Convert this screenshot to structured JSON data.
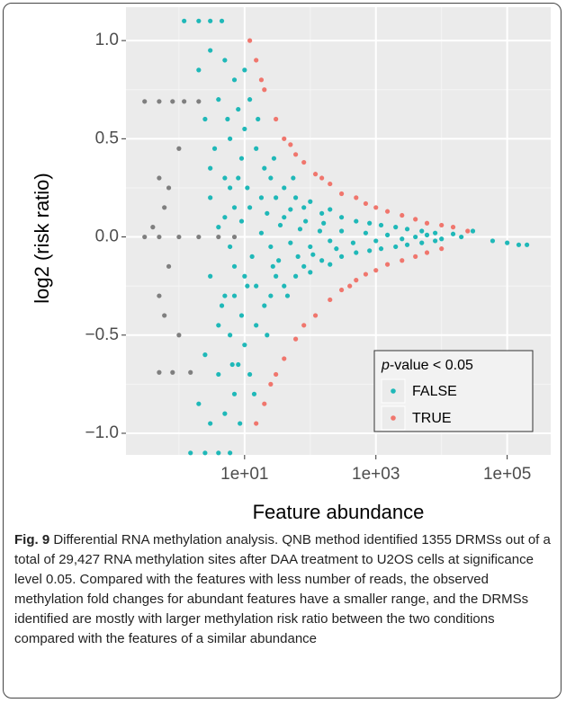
{
  "chart_data": {
    "type": "scatter",
    "x_label": "Feature abundance",
    "y_label": "log2 (risk ratio)",
    "log_x": true,
    "xlim": [
      0.156,
      460000
    ],
    "xticks": [
      {
        "value": 10,
        "label": "1e+01"
      },
      {
        "value": 1000,
        "label": "1e+03"
      },
      {
        "value": 100000,
        "label": "1e+05"
      }
    ],
    "xminor_ticks": [
      1,
      100,
      10000
    ],
    "ylim": [
      -1.11,
      1.17
    ],
    "yticks": [
      {
        "value": -1,
        "label": "−1.0"
      },
      {
        "value": -0.5,
        "label": "−0.5"
      },
      {
        "value": 0,
        "label": "0.0"
      },
      0.5,
      {
        "value": 1,
        "label": "1.0"
      }
    ],
    "yminor_ticks": [
      -0.75,
      -0.25,
      0.25,
      0.75
    ],
    "grid": true,
    "legend_title": [
      "p",
      "-value < 0.05"
    ],
    "legend_position": "bottom-right",
    "series": [
      {
        "color": "#7f7f7f",
        "x": [
          0.3,
          0.5,
          0.8,
          1.2,
          2,
          0.3,
          0.5,
          1,
          2,
          4,
          7,
          0.5,
          0.8,
          1.5,
          0.5,
          0.6,
          0.5,
          0.6,
          0.7,
          0.7,
          0.4,
          1,
          1
        ],
        "values": [
          0.69,
          0.69,
          0.69,
          0.69,
          0.69,
          0,
          0,
          0,
          0,
          0,
          0,
          -0.69,
          -0.69,
          -0.69,
          0.3,
          0.15,
          -0.3,
          -0.4,
          0.25,
          -0.15,
          0.05,
          0.45,
          -0.5
        ]
      },
      {
        "name": "TRUE",
        "color": "#f0766d",
        "x": [
          12,
          15,
          20,
          30,
          40,
          60,
          80,
          120,
          200,
          300,
          500,
          700,
          1000,
          1500,
          2500,
          4000,
          6000,
          10000,
          15000,
          25000,
          15,
          20,
          30,
          40,
          60,
          80,
          120,
          200,
          300,
          500,
          700,
          1000,
          1500,
          2500,
          4000,
          6000,
          10000,
          18,
          25,
          50,
          150,
          400
        ],
        "values": [
          1.0,
          0.9,
          0.75,
          0.6,
          0.5,
          0.42,
          0.38,
          0.32,
          0.27,
          0.22,
          0.2,
          0.17,
          0.15,
          0.13,
          0.11,
          0.09,
          0.07,
          0.06,
          0.05,
          0.03,
          -0.95,
          -0.85,
          -0.7,
          -0.62,
          -0.52,
          -0.45,
          -0.4,
          -0.32,
          -0.27,
          -0.22,
          -0.19,
          -0.17,
          -0.14,
          -0.12,
          -0.1,
          -0.08,
          -0.06,
          0.8,
          -0.75,
          0.47,
          0.3,
          -0.25
        ]
      },
      {
        "name": "FALSE",
        "color": "#1fb8b8",
        "x": [
          1.2,
          2,
          3,
          4.5,
          1.5,
          2.5,
          4,
          6,
          2,
          3,
          5,
          7,
          4,
          2.5,
          6,
          8,
          10,
          12,
          9,
          15,
          20,
          5,
          3,
          7,
          11,
          25,
          30,
          40,
          60,
          80,
          100,
          150,
          200,
          300,
          500,
          800,
          1200,
          2000,
          3000,
          5000,
          8000,
          15000,
          30000,
          60000,
          100000,
          150000,
          200000,
          4,
          6,
          9,
          13,
          18,
          25,
          35,
          50,
          70,
          100,
          140,
          200,
          300,
          450,
          700,
          1000,
          1500,
          2500,
          4000,
          6000,
          10000,
          20000,
          2,
          3,
          5,
          7,
          4,
          2.5,
          6,
          8,
          10,
          12,
          9,
          15,
          20,
          5,
          3,
          7,
          11,
          25,
          30,
          40,
          60,
          80,
          100,
          150,
          200,
          300,
          500,
          800,
          1200,
          2000,
          3000,
          5000,
          8000,
          3.5,
          4.5,
          5.5,
          6.5,
          8.5,
          10,
          14,
          16,
          22,
          28,
          45,
          55,
          3,
          4,
          5,
          6,
          7,
          8,
          10,
          12,
          15,
          18,
          22,
          27,
          33,
          40,
          50,
          65,
          85,
          110,
          160,
          250
        ],
        "values": [
          1.1,
          1.1,
          1.1,
          1.1,
          -1.1,
          -1.1,
          -1.1,
          -1.1,
          0.85,
          0.95,
          0.9,
          0.8,
          0.7,
          0.6,
          0.5,
          0.65,
          0.55,
          0.7,
          0.4,
          0.45,
          0.35,
          0.3,
          0.2,
          0.15,
          0.25,
          0.3,
          0.2,
          0.25,
          0.2,
          0.15,
          0.18,
          0.12,
          0.14,
          0.1,
          0.08,
          0.07,
          0.06,
          0.05,
          0.04,
          0.03,
          0.02,
          0.015,
          0.03,
          -0.02,
          -0.03,
          -0.04,
          -0.04,
          0.05,
          -0.05,
          0.08,
          -0.1,
          0.02,
          -0.05,
          0.06,
          -0.03,
          0.04,
          -0.05,
          0.03,
          -0.02,
          0.03,
          -0.03,
          0.02,
          -0.02,
          0.01,
          -0.01,
          0,
          0.01,
          -0.01,
          0,
          -0.85,
          -0.95,
          -0.9,
          -0.8,
          -0.7,
          -0.6,
          -0.5,
          -0.65,
          -0.55,
          -0.7,
          -0.4,
          -0.45,
          -0.35,
          -0.3,
          -0.2,
          -0.15,
          -0.25,
          -0.3,
          -0.2,
          -0.25,
          -0.2,
          -0.15,
          -0.18,
          -0.12,
          -0.14,
          -0.1,
          -0.08,
          -0.07,
          -0.06,
          -0.05,
          -0.04,
          -0.03,
          -0.02,
          0.45,
          -0.35,
          0.6,
          -0.65,
          -0.95,
          0.85,
          -0.8,
          0.6,
          -0.5,
          0.4,
          -0.3,
          0.3,
          0.35,
          -0.45,
          0.1,
          0.25,
          -0.3,
          0.3,
          -0.2,
          0.15,
          -0.25,
          0.2,
          0.12,
          -0.15,
          -0.12,
          0.1,
          0.14,
          -0.1,
          0.08,
          -0.09,
          0.07,
          -0.06
        ]
      }
    ]
  },
  "caption": {
    "label": "Fig. 9",
    "text": "Differential RNA methylation analysis. QNB method identified 1355 DRMSs out of a total of 29,427 RNA methylation sites after DAA treatment to U2OS cells at significance level 0.05. Compared with the features with less number of reads, the observed methylation fold changes for abundant features have a smaller range, and the DRMSs identified are mostly with larger methylation risk ratio between the two conditions compared with the features of a similar abundance"
  }
}
